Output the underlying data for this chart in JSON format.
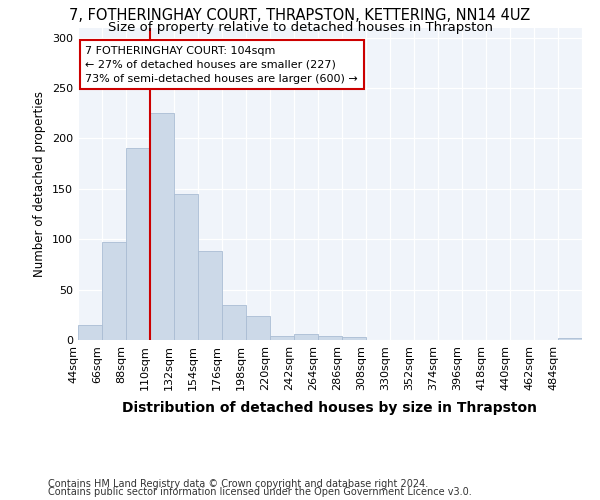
{
  "title": "7, FOTHERINGHAY COURT, THRAPSTON, KETTERING, NN14 4UZ",
  "subtitle": "Size of property relative to detached houses in Thrapston",
  "xlabel": "Distribution of detached houses by size in Thrapston",
  "ylabel": "Number of detached properties",
  "footer_line1": "Contains HM Land Registry data © Crown copyright and database right 2024.",
  "footer_line2": "Contains public sector information licensed under the Open Government Licence v3.0.",
  "bin_labels": [
    "44sqm",
    "66sqm",
    "88sqm",
    "110sqm",
    "132sqm",
    "154sqm",
    "176sqm",
    "198sqm",
    "220sqm",
    "242sqm",
    "264sqm",
    "286sqm",
    "308sqm",
    "330sqm",
    "352sqm",
    "374sqm",
    "396sqm",
    "418sqm",
    "440sqm",
    "462sqm",
    "484sqm"
  ],
  "bar_values": [
    15,
    97,
    190,
    225,
    145,
    88,
    35,
    24,
    4,
    6,
    4,
    3,
    0,
    0,
    0,
    0,
    0,
    0,
    0,
    0,
    2
  ],
  "bar_color": "#ccd9e8",
  "bar_edgecolor": "#aabdd4",
  "vline_color": "#cc0000",
  "annotation_text": "7 FOTHERINGHAY COURT: 104sqm\n← 27% of detached houses are smaller (227)\n73% of semi-detached houses are larger (600) →",
  "annotation_box_facecolor": "#ffffff",
  "annotation_box_edgecolor": "#cc0000",
  "ylim": [
    0,
    310
  ],
  "yticks": [
    0,
    50,
    100,
    150,
    200,
    250,
    300
  ],
  "background_color": "#ffffff",
  "plot_background": "#f0f4fa",
  "title_fontsize": 10.5,
  "subtitle_fontsize": 9.5,
  "ylabel_fontsize": 8.5,
  "xlabel_fontsize": 10,
  "tick_fontsize": 8,
  "annotation_fontsize": 8,
  "footer_fontsize": 7
}
